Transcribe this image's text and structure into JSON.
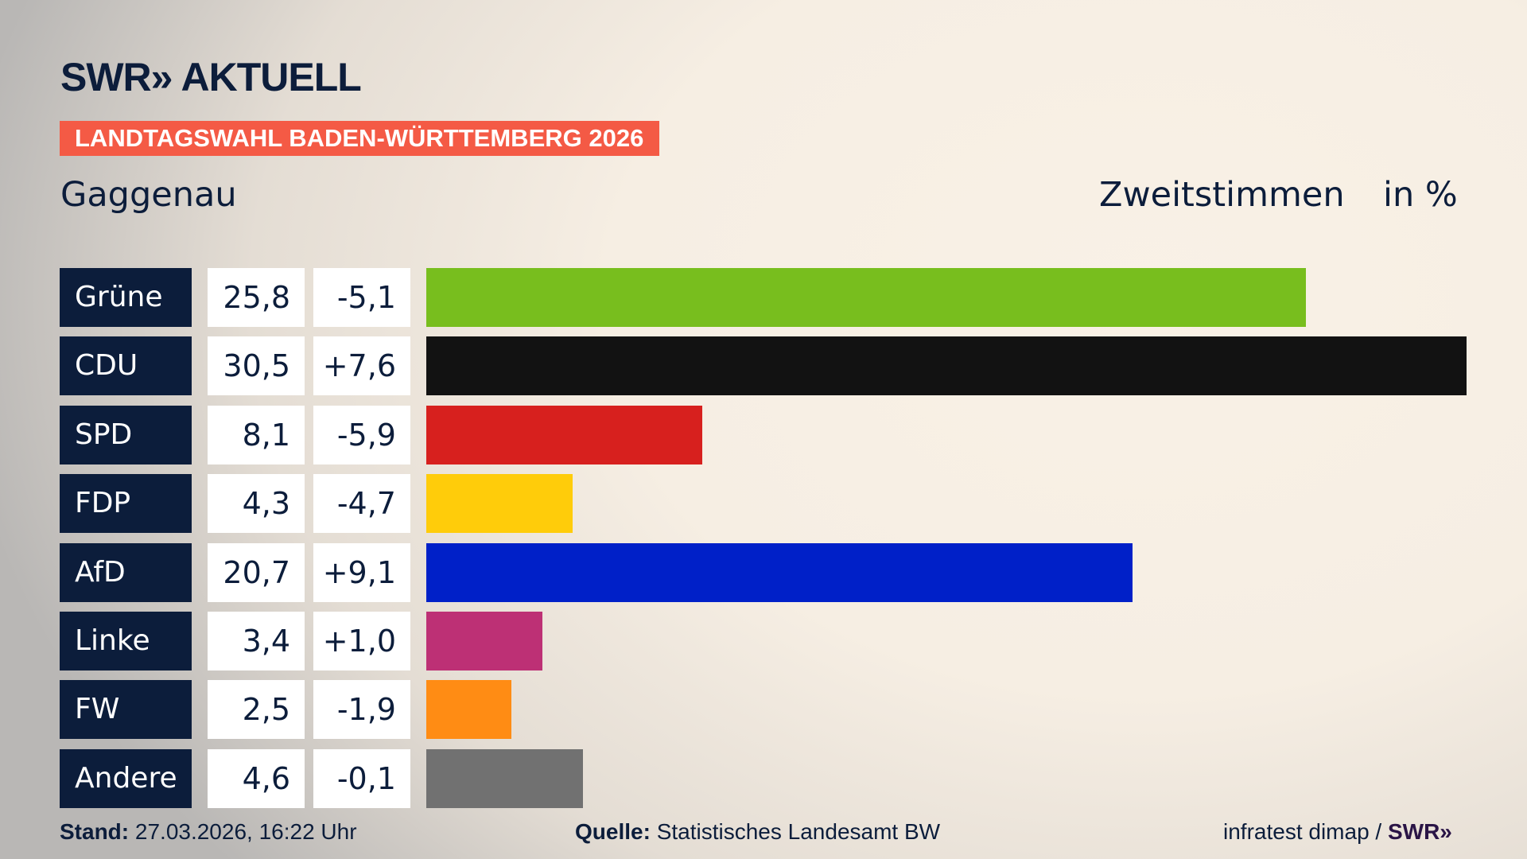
{
  "header": {
    "logo": "SWR» AKTUELL",
    "banner": "LANDTAGSWAHL BADEN-WÜRTTEMBERG 2026",
    "place": "Gaggenau",
    "vote_type": "Zweitstimmen",
    "unit": "in %"
  },
  "colors": {
    "navy": "#0c1d3b",
    "banner": "#f45a45"
  },
  "chart_data": {
    "type": "bar",
    "orientation": "horizontal",
    "categories": [
      "Grüne",
      "CDU",
      "SPD",
      "FDP",
      "AfD",
      "Linke",
      "FW",
      "Andere"
    ],
    "values": [
      25.8,
      30.5,
      8.1,
      4.3,
      20.7,
      3.4,
      2.5,
      4.6
    ],
    "value_labels": [
      "25,8",
      "30,5",
      "8,1",
      "4,3",
      "20,7",
      "3,4",
      "2,5",
      "4,6"
    ],
    "diff_labels": [
      "-5,1",
      "+7,6",
      "-5,9",
      "-4,7",
      "+9,1",
      "+1,0",
      "-1,9",
      "-0,1"
    ],
    "changes": [
      -5.1,
      7.6,
      -5.9,
      -4.7,
      9.1,
      1.0,
      -1.9,
      -0.1
    ],
    "bar_colors": [
      "#78be1e",
      "#121212",
      "#d7201e",
      "#ffcc0a",
      "#0020c8",
      "#bd3075",
      "#ff8c14",
      "#717171"
    ],
    "xlim": [
      0,
      30.5
    ]
  },
  "footer": {
    "stand_label": "Stand:",
    "stand_value": "27.03.2026, 16:22 Uhr",
    "source_label": "Quelle:",
    "source_value": "Statistisches Landesamt BW",
    "credit": "infratest dimap /",
    "credit_logo": "SWR»"
  }
}
